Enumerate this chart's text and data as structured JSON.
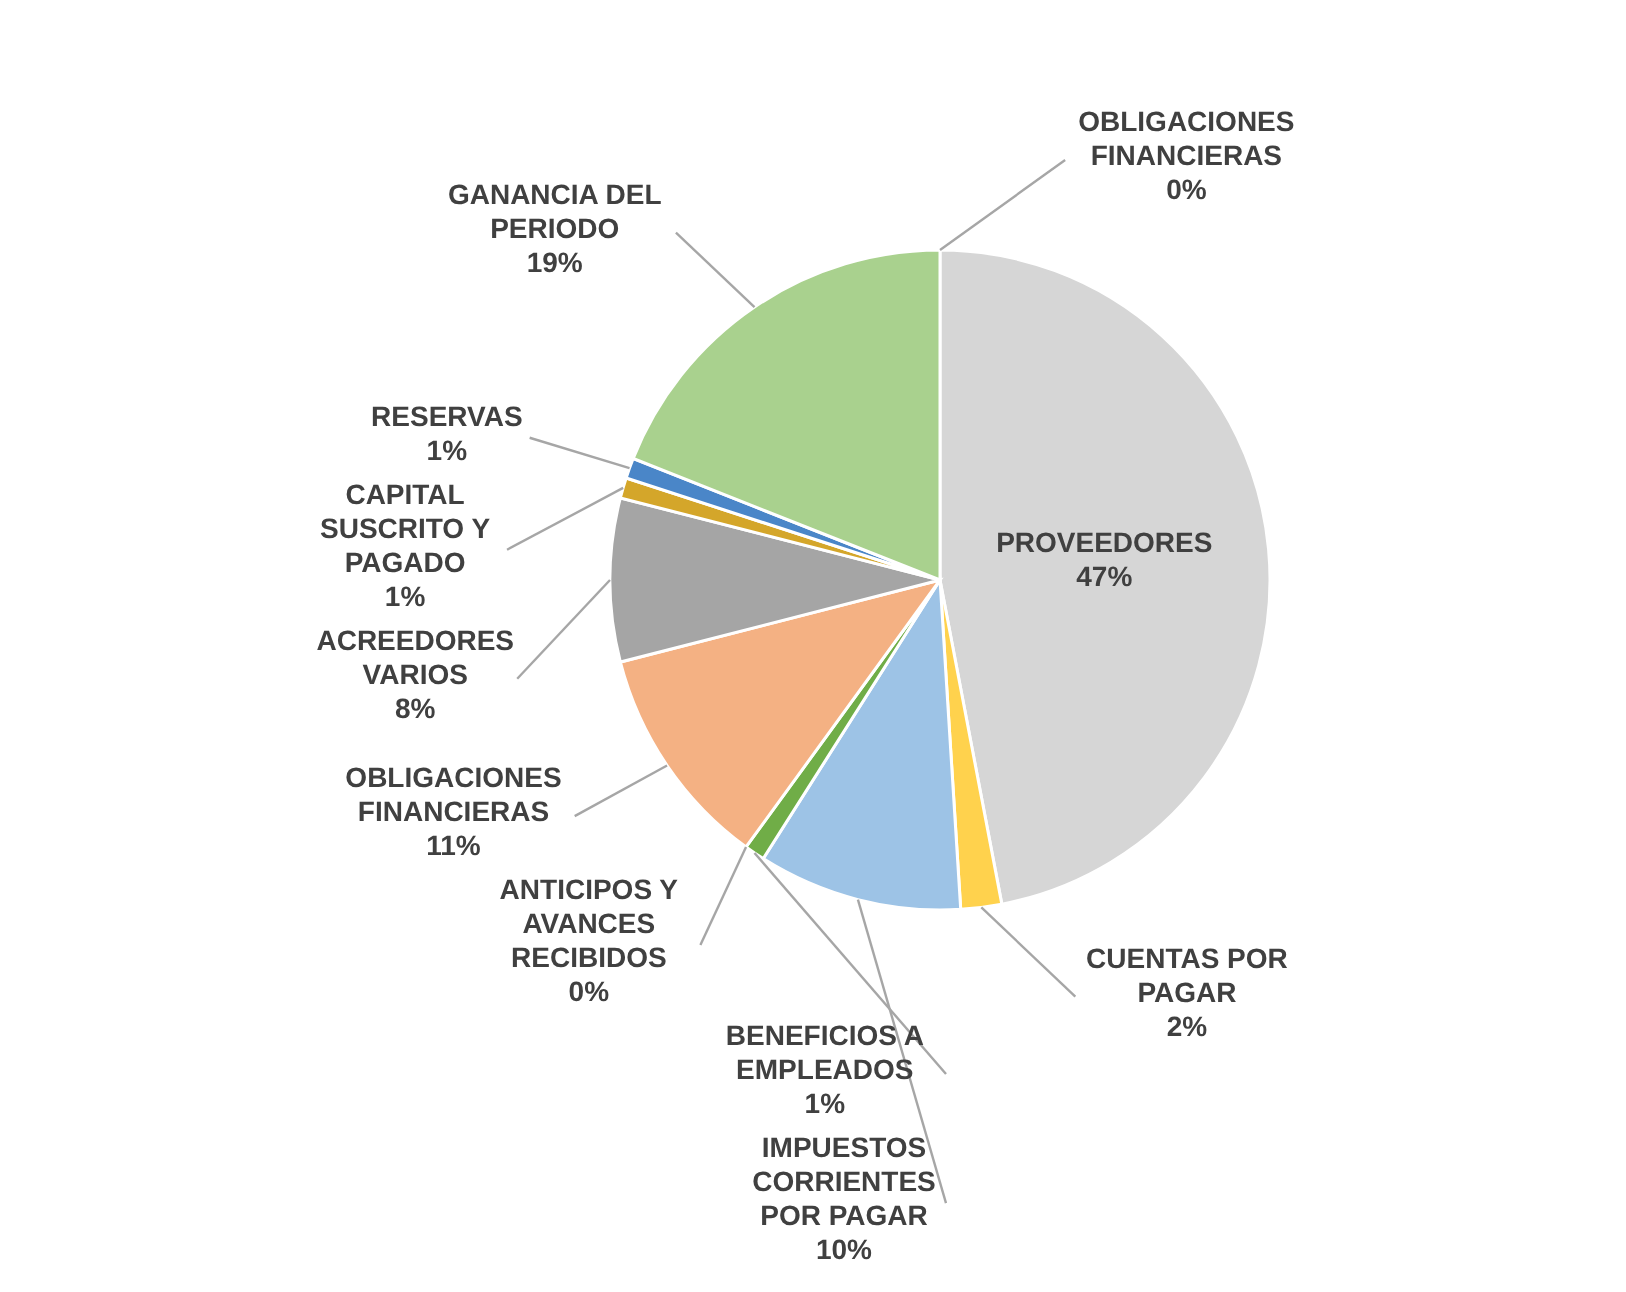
{
  "chart_data": {
    "type": "pie",
    "categories": [
      "OBLIGACIONES FINANCIERAS",
      "PROVEEDORES",
      "CUENTAS POR PAGAR",
      "IMPUESTOS CORRIENTES POR PAGAR",
      "BENEFICIOS A EMPLEADOS",
      "ANTICIPOS Y AVANCES RECIBIDOS",
      "OBLIGACIONES FINANCIERAS",
      "ACREEDORES VARIOS",
      "CAPITAL SUSCRITO Y PAGADO",
      "RESERVAS",
      "GANANCIA DEL PERIODO"
    ],
    "values": [
      0,
      47,
      2,
      10,
      1,
      0,
      11,
      8,
      1,
      1,
      19
    ],
    "colors": [
      "#ed7d31",
      "#d6d6d6",
      "#ffd24d",
      "#9dc3e6",
      "#70ad47",
      "#5b9bd5",
      "#f4b183",
      "#a5a5a5",
      "#d4a62a",
      "#4a86c8",
      "#a9d18e"
    ],
    "value_labels": [
      "0%",
      "47%",
      "2%",
      "10%",
      "1%",
      "0%",
      "11%",
      "8%",
      "1%",
      "1%",
      "19%"
    ]
  }
}
